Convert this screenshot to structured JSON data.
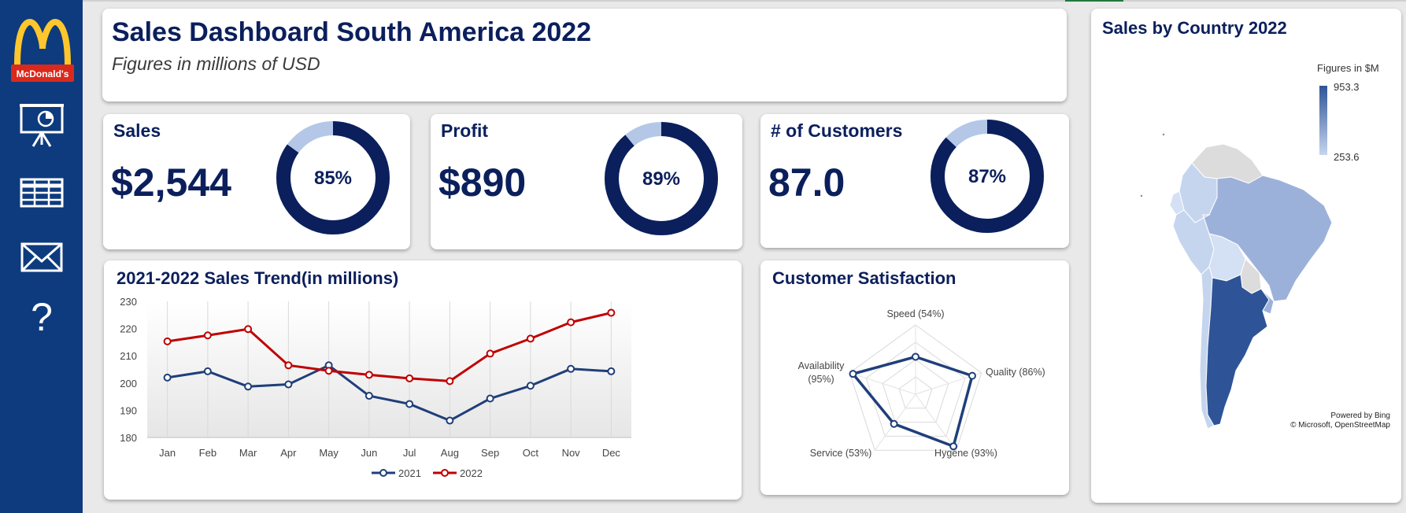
{
  "header": {
    "title": "Sales Dashboard South America 2022",
    "subtitle": "Figures in millions of USD"
  },
  "sidebar": {
    "logo_text": "McDonald's",
    "icons": [
      "presentation-icon",
      "table-icon",
      "mail-icon",
      "help-icon"
    ],
    "help_glyph": "?"
  },
  "kpis": [
    {
      "label": "Sales",
      "value": "$2,544",
      "percent": 85,
      "percent_label": "85%"
    },
    {
      "label": "Profit",
      "value": "$890",
      "percent": 89,
      "percent_label": "89%"
    },
    {
      "label": "# of Customers",
      "value": "87.0",
      "percent": 87,
      "percent_label": "87%"
    }
  ],
  "trend": {
    "title": "2021-2022 Sales Trend(in millions)"
  },
  "satisfaction": {
    "title": "Customer Satisfaction"
  },
  "map": {
    "title": "Sales by Country 2022",
    "legend_title": "Figures in $M",
    "legend_max": "953.3",
    "legend_min": "253.6",
    "credit_line1": "Powered by Bing",
    "credit_line2": "© Microsoft, OpenStreetMap",
    "colors": {
      "high": "#2e5497",
      "low": "#c6d5ee",
      "no_data": "#dcdcdc"
    }
  },
  "colors": {
    "navy": "#0b1f5c",
    "sidebar": "#0d3b7e",
    "donut_light": "#b4c7e7",
    "series_2021": "#1f3f7a",
    "series_2022": "#c00000"
  },
  "chart_data": [
    {
      "type": "line",
      "title": "2021-2022 Sales Trend(in millions)",
      "categories": [
        "Jan",
        "Feb",
        "Mar",
        "Apr",
        "May",
        "Jun",
        "Jul",
        "Aug",
        "Sep",
        "Oct",
        "Nov",
        "Dec"
      ],
      "ylim": [
        180,
        230
      ],
      "yticks": [
        180,
        190,
        200,
        210,
        220,
        230
      ],
      "grid": "vertical",
      "legend": "bottom",
      "series": [
        {
          "name": "2021",
          "color": "#1f3f7a",
          "values": [
            202,
            204.3,
            198.7,
            199.5,
            206.5,
            195.3,
            192.3,
            186.2,
            194.3,
            199,
            205.2,
            204.3
          ]
        },
        {
          "name": "2022",
          "color": "#c00000",
          "values": [
            215.3,
            217.5,
            219.8,
            206.5,
            204.5,
            203,
            201.7,
            200.7,
            210.8,
            216.3,
            222.3,
            225.8
          ]
        }
      ]
    },
    {
      "type": "radar",
      "title": "Customer Satisfaction",
      "rmax": 100,
      "categories": [
        {
          "label": "Speed (54%)",
          "value": 54
        },
        {
          "label": "Quality (86%)",
          "value": 86
        },
        {
          "label": "Hygene (93%)",
          "value": 93
        },
        {
          "label": "Service (53%)",
          "value": 53
        },
        {
          "label": "Availability (95%)",
          "value": 95
        }
      ]
    }
  ]
}
